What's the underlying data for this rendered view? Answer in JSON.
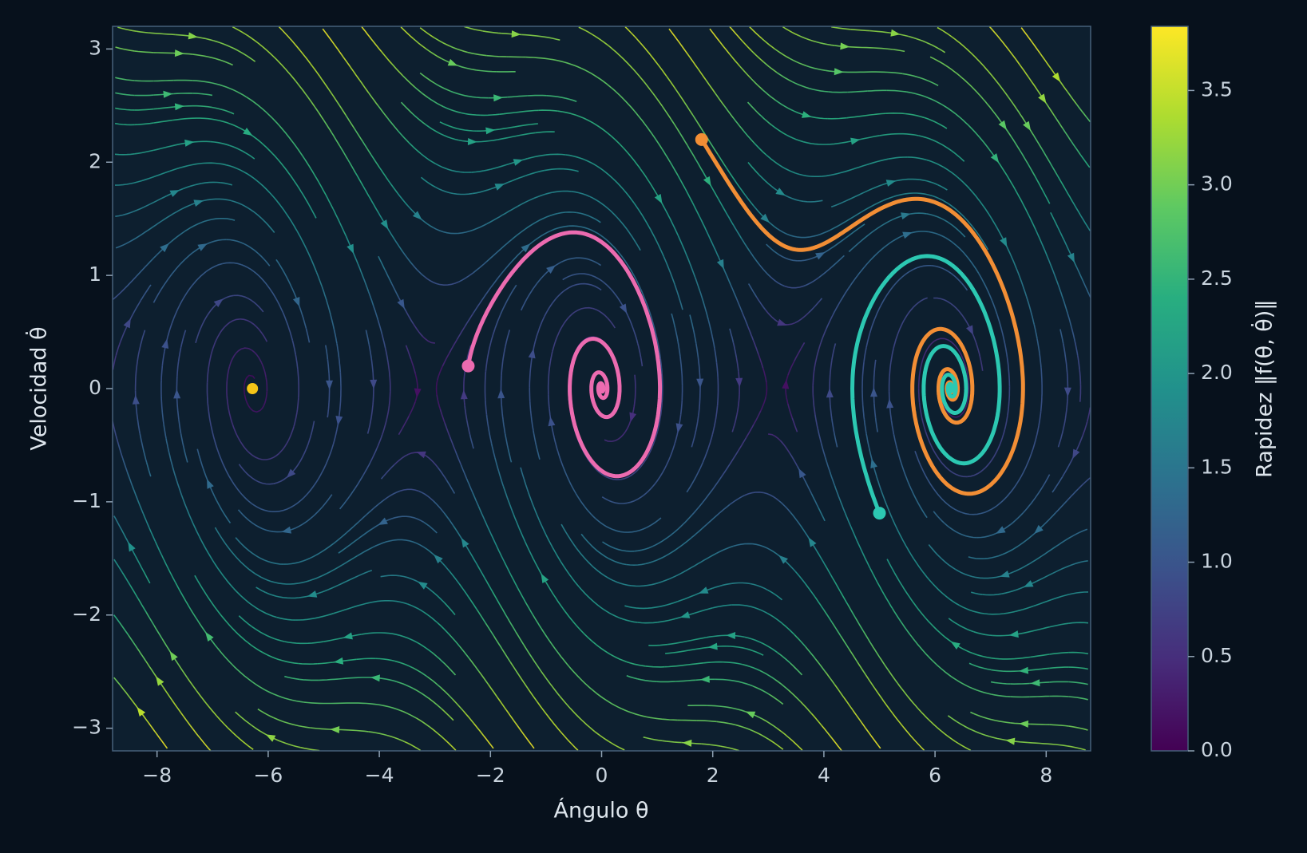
{
  "chart_data": {
    "type": "streamplot",
    "xlabel": "Ángulo θ",
    "ylabel": "Velocidad θ̇",
    "colorbar_label": "Rapidez ‖f(θ, θ̇)‖",
    "colormap": "viridis",
    "damping": 0.35,
    "xlim": [
      -8.8,
      8.8
    ],
    "ylim": [
      -3.2,
      3.2
    ],
    "xticks": [
      {
        "value": -8,
        "label": "−8"
      },
      {
        "value": -6,
        "label": "−6"
      },
      {
        "value": -4,
        "label": "−4"
      },
      {
        "value": -2,
        "label": "−2"
      },
      0,
      2,
      4,
      6,
      8
    ],
    "yticks": [
      {
        "value": -3,
        "label": "−3"
      },
      {
        "value": -2,
        "label": "−2"
      },
      {
        "value": -1,
        "label": "−1"
      },
      0,
      1,
      2,
      3
    ],
    "clim": [
      0,
      3.84
    ],
    "cticks": [
      {
        "value": 0,
        "label": "0.0"
      },
      0.5,
      {
        "value": 1,
        "label": "1.0"
      },
      1.5,
      {
        "value": 2,
        "label": "2.0"
      },
      2.5,
      {
        "value": 3,
        "label": "3.0"
      },
      3.5
    ],
    "series": [
      {
        "color": "#ec6bb0",
        "start_x": -2.4,
        "start_y": 0.2
      },
      {
        "color": "#f28e35",
        "start_x": 1.8,
        "start_y": 2.2
      },
      {
        "color": "#2cc8b2",
        "start_x": 5.0,
        "start_y": -1.1
      }
    ],
    "fixed_points": [
      {
        "x": -6.283,
        "y": 0,
        "color": "#f5c518"
      }
    ]
  }
}
